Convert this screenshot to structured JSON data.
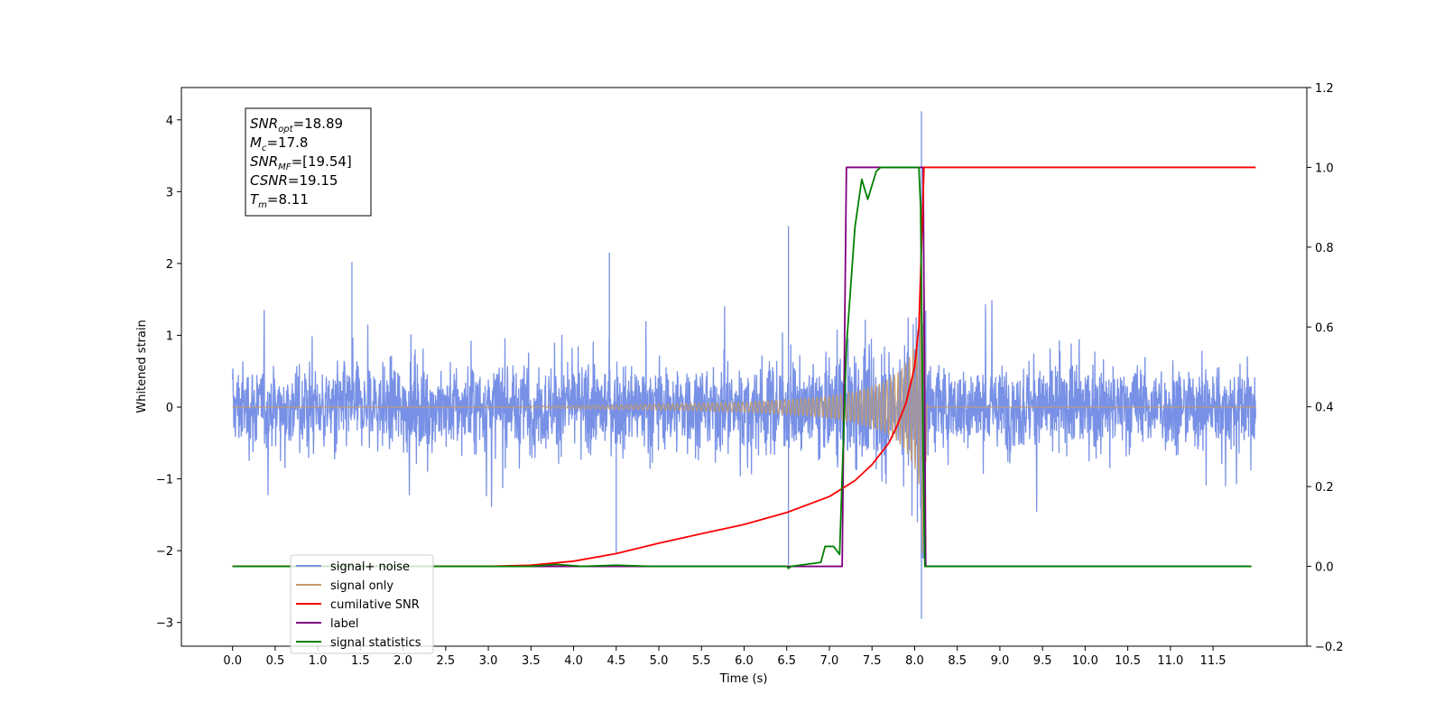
{
  "chart_data": {
    "type": "line",
    "xlabel": "Time (s)",
    "ylabel": "Whitened strain",
    "xlim": [
      -0.6,
      12.6
    ],
    "ylim": [
      -3.33,
      4.45
    ],
    "y2lim": [
      -0.2,
      1.2
    ],
    "x_ticks": [
      0.0,
      0.5,
      1.0,
      1.5,
      2.0,
      2.5,
      3.0,
      3.5,
      4.0,
      4.5,
      5.0,
      5.5,
      6.0,
      6.5,
      7.0,
      7.5,
      8.0,
      8.5,
      9.0,
      9.5,
      10.0,
      10.5,
      11.0,
      11.5
    ],
    "x_tick_labels": [
      "0.0",
      "0.5",
      "1.0",
      "1.5",
      "2.0",
      "2.5",
      "3.0",
      "3.5",
      "4.0",
      "4.5",
      "5.0",
      "5.5",
      "6.0",
      "6.5",
      "7.0",
      "7.5",
      "8.0",
      "8.5",
      "9.0",
      "9.5",
      "10.0",
      "10.5",
      "11.0",
      "11.5"
    ],
    "y_ticks": [
      -3,
      -2,
      -1,
      0,
      1,
      2,
      3,
      4
    ],
    "y_tick_labels": [
      "−3",
      "−2",
      "−1",
      "0",
      "1",
      "2",
      "3",
      "4"
    ],
    "y2_ticks": [
      -0.2,
      0.0,
      0.2,
      0.4,
      0.6,
      0.8,
      1.0,
      1.2
    ],
    "y2_tick_labels": [
      "−0.2",
      "0.0",
      "0.2",
      "0.4",
      "0.6",
      "0.8",
      "1.0",
      "1.2"
    ],
    "info_box": [
      {
        "main": "SNR",
        "sub": "opt",
        "rest": "=18.89"
      },
      {
        "main": "M",
        "sub": "c",
        "rest": "=17.8"
      },
      {
        "main": "SNR",
        "sub": "MF",
        "rest": "=[19.54]"
      },
      {
        "main": "CSNR",
        "sub": "",
        "rest": "=19.15"
      },
      {
        "main": "T",
        "sub": "m",
        "rest": "=8.11"
      }
    ],
    "legend_position": "lower-left",
    "series": [
      {
        "name": "signal+ noise",
        "axis": "left",
        "color": "#7891e6",
        "noise_envelope_x": [
          0.0,
          1.0,
          2.0,
          3.0,
          4.0,
          5.0,
          6.0,
          6.5,
          7.0,
          7.3,
          7.6,
          7.8,
          8.0,
          8.05,
          8.1,
          8.15,
          9.0,
          10.0,
          11.0,
          12.0
        ],
        "noise_envelope": [
          1.25,
          1.25,
          1.25,
          1.25,
          1.25,
          1.25,
          1.25,
          1.3,
          1.35,
          1.4,
          1.5,
          1.7,
          2.0,
          2.2,
          2.6,
          1.25,
          1.25,
          1.25,
          1.25,
          1.25
        ],
        "spikes": [
          [
            6.52,
            2.52
          ],
          [
            6.52,
            -2.2
          ],
          [
            8.08,
            4.12
          ],
          [
            8.08,
            -2.95
          ],
          [
            4.5,
            -2.05
          ],
          [
            1.4,
            2.02
          ],
          [
            4.42,
            2.15
          ]
        ]
      },
      {
        "name": "signal only",
        "axis": "left",
        "color": "#c29a6b",
        "x": [
          0.0,
          3.0,
          4.0,
          5.0,
          6.0,
          6.5,
          7.0,
          7.3,
          7.6,
          7.8,
          7.9,
          8.0,
          8.05,
          8.1,
          8.15,
          12.0
        ],
        "amplitude": [
          0.0,
          0.005,
          0.02,
          0.04,
          0.07,
          0.1,
          0.15,
          0.22,
          0.33,
          0.48,
          0.62,
          0.85,
          1.1,
          2.25,
          0.0,
          0.0
        ]
      },
      {
        "name": "cumilative SNR",
        "axis": "right",
        "color": "#ff0000",
        "x": [
          0.0,
          3.0,
          3.5,
          4.0,
          4.5,
          5.0,
          5.5,
          6.0,
          6.5,
          7.0,
          7.3,
          7.5,
          7.7,
          7.8,
          7.9,
          8.0,
          8.05,
          8.08,
          8.11,
          12.0
        ],
        "values": [
          0.0,
          0.0,
          0.003,
          0.013,
          0.032,
          0.058,
          0.082,
          0.105,
          0.135,
          0.175,
          0.215,
          0.255,
          0.31,
          0.355,
          0.41,
          0.5,
          0.6,
          0.8,
          1.0,
          1.0
        ]
      },
      {
        "name": "label",
        "axis": "right",
        "color": "#800080",
        "x": [
          0.0,
          7.15,
          7.2,
          8.1,
          8.13,
          11.95
        ],
        "values": [
          0.0,
          0.0,
          1.0,
          1.0,
          0.0,
          0.0
        ]
      },
      {
        "name": "signal statistics",
        "axis": "right",
        "color": "#008000",
        "x": [
          0.0,
          3.5,
          3.8,
          4.1,
          4.5,
          4.9,
          6.5,
          6.52,
          6.55,
          6.9,
          6.95,
          7.05,
          7.12,
          7.2,
          7.3,
          7.38,
          7.45,
          7.55,
          7.6,
          7.7,
          8.05,
          8.07,
          8.1,
          8.12,
          11.95
        ],
        "values": [
          0.0,
          0.0,
          0.005,
          0.0,
          0.003,
          0.0,
          0.0,
          -0.005,
          0.0,
          0.01,
          0.05,
          0.05,
          0.03,
          0.55,
          0.85,
          0.97,
          0.92,
          0.99,
          1.0,
          1.0,
          1.0,
          0.9,
          0.3,
          0.0,
          0.0
        ]
      }
    ]
  }
}
